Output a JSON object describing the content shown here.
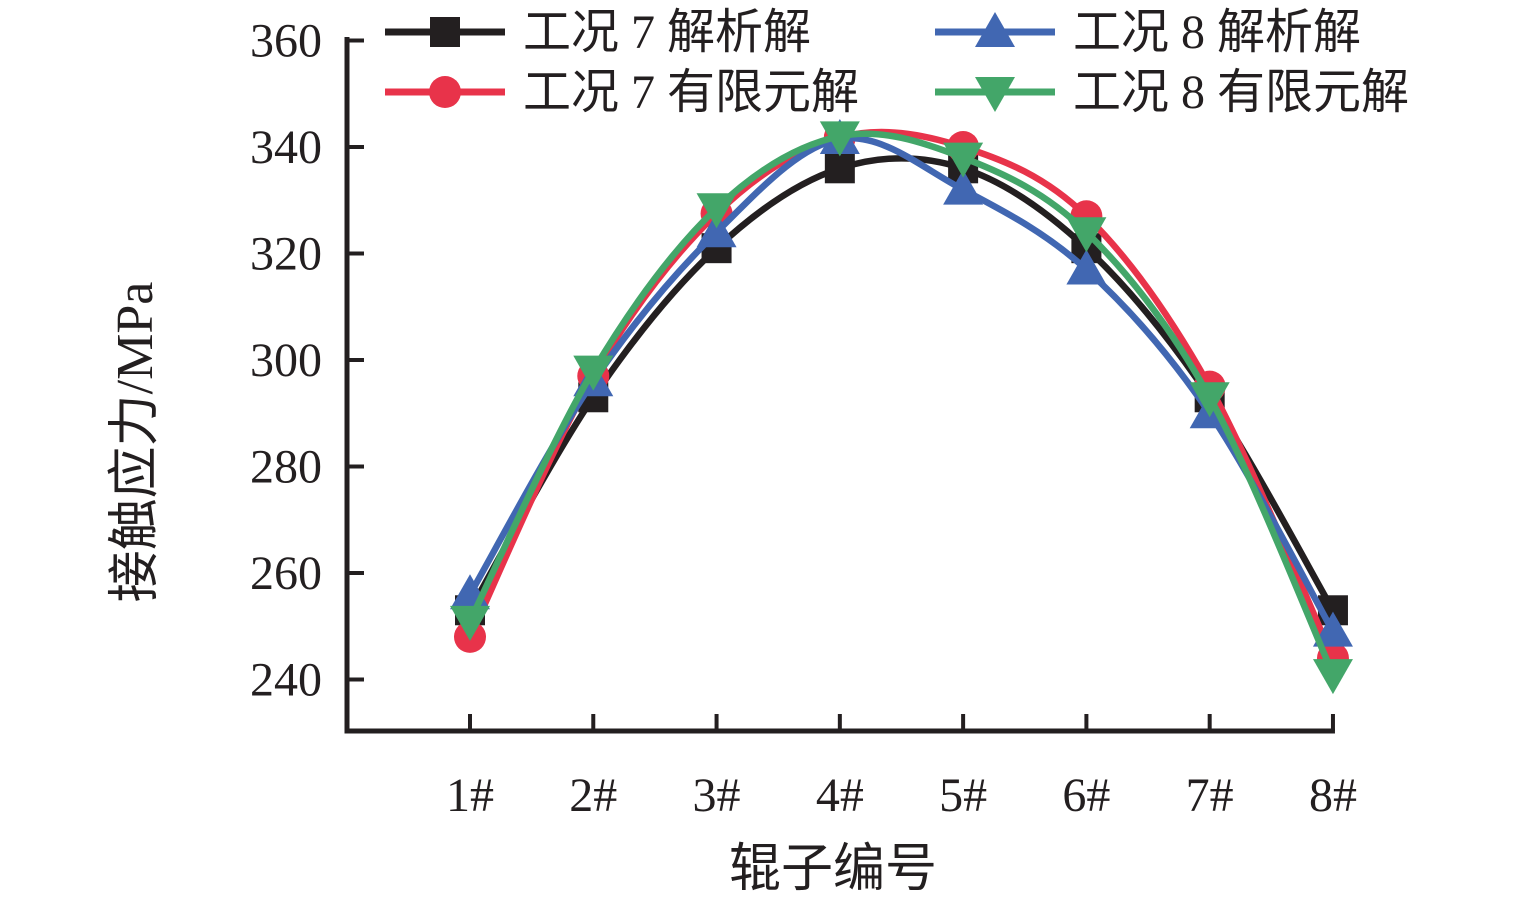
{
  "chart_data": {
    "type": "line",
    "title": "",
    "xlabel": "辊子编号",
    "ylabel": "接触应力/MPa",
    "categories": [
      "1#",
      "2#",
      "3#",
      "4#",
      "5#",
      "6#",
      "7#",
      "8#"
    ],
    "yticks": [
      360,
      340,
      320,
      300,
      280,
      260,
      240
    ],
    "ylim": [
      229.5,
      360.5
    ],
    "grid": false,
    "legend_position": "top",
    "axis_color": "#231f20",
    "line_smoothing": "spline",
    "series": [
      {
        "name": "工况 7 解析解",
        "color": "#231f20",
        "marker": "square",
        "values": [
          253,
          293,
          321,
          336,
          336,
          321,
          293,
          253
        ]
      },
      {
        "name": "工况 7 有限元解",
        "color": "#e8334a",
        "marker": "circle",
        "values": [
          248,
          297,
          327.5,
          341.8,
          340,
          327,
          295,
          244
        ]
      },
      {
        "name": "工况 8 解析解",
        "color": "#4167b2",
        "marker": "triangle-up",
        "values": [
          256,
          296,
          324,
          341.5,
          332,
          317,
          290,
          249
        ]
      },
      {
        "name": "工况 8 有限元解",
        "color": "#43a669",
        "marker": "triangle-down",
        "values": [
          251,
          298,
          328.5,
          342,
          338,
          324,
          293,
          241
        ]
      }
    ]
  }
}
